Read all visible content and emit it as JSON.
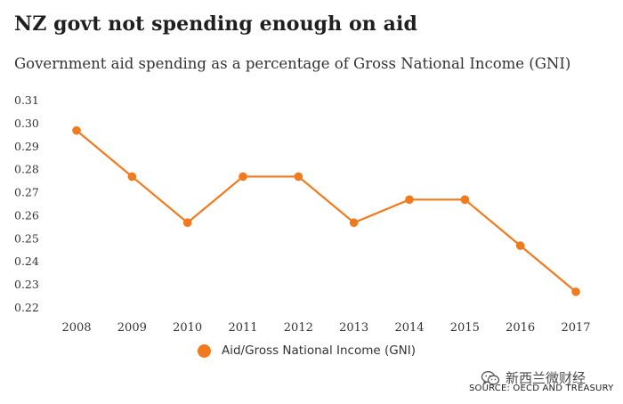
{
  "title": "NZ govt not spending enough on aid",
  "subtitle": "Government aid spending as a percentage of Gross National Income (GNI)",
  "legend_label": "Aid/Gross National Income (GNI)",
  "watermark_text": "新西兰微财经",
  "watermark_icon": "wechat-icon",
  "source": "SOURCE: OECD AND TREASURY",
  "colors": {
    "line": "#f07a1d",
    "text": "#333333"
  },
  "chart_data": {
    "type": "line",
    "title": "NZ govt not spending enough on aid",
    "subtitle": "Government aid spending as a percentage of Gross National Income (GNI)",
    "xlabel": "",
    "ylabel": "",
    "x": [
      "2008",
      "2009",
      "2010",
      "2011",
      "2012",
      "2013",
      "2014",
      "2015",
      "2016",
      "2017"
    ],
    "series": [
      {
        "name": "Aid/Gross National Income (GNI)",
        "values": [
          0.297,
          0.277,
          0.257,
          0.277,
          0.277,
          0.257,
          0.267,
          0.267,
          0.247,
          0.227
        ]
      }
    ],
    "yticks": [
      "0.31",
      "0.30",
      "0.29",
      "0.28",
      "0.27",
      "0.26",
      "0.25",
      "0.24",
      "0.23",
      "0.22"
    ],
    "ylim": [
      0.22,
      0.31
    ],
    "grid": false,
    "legend_position": "bottom-center"
  }
}
